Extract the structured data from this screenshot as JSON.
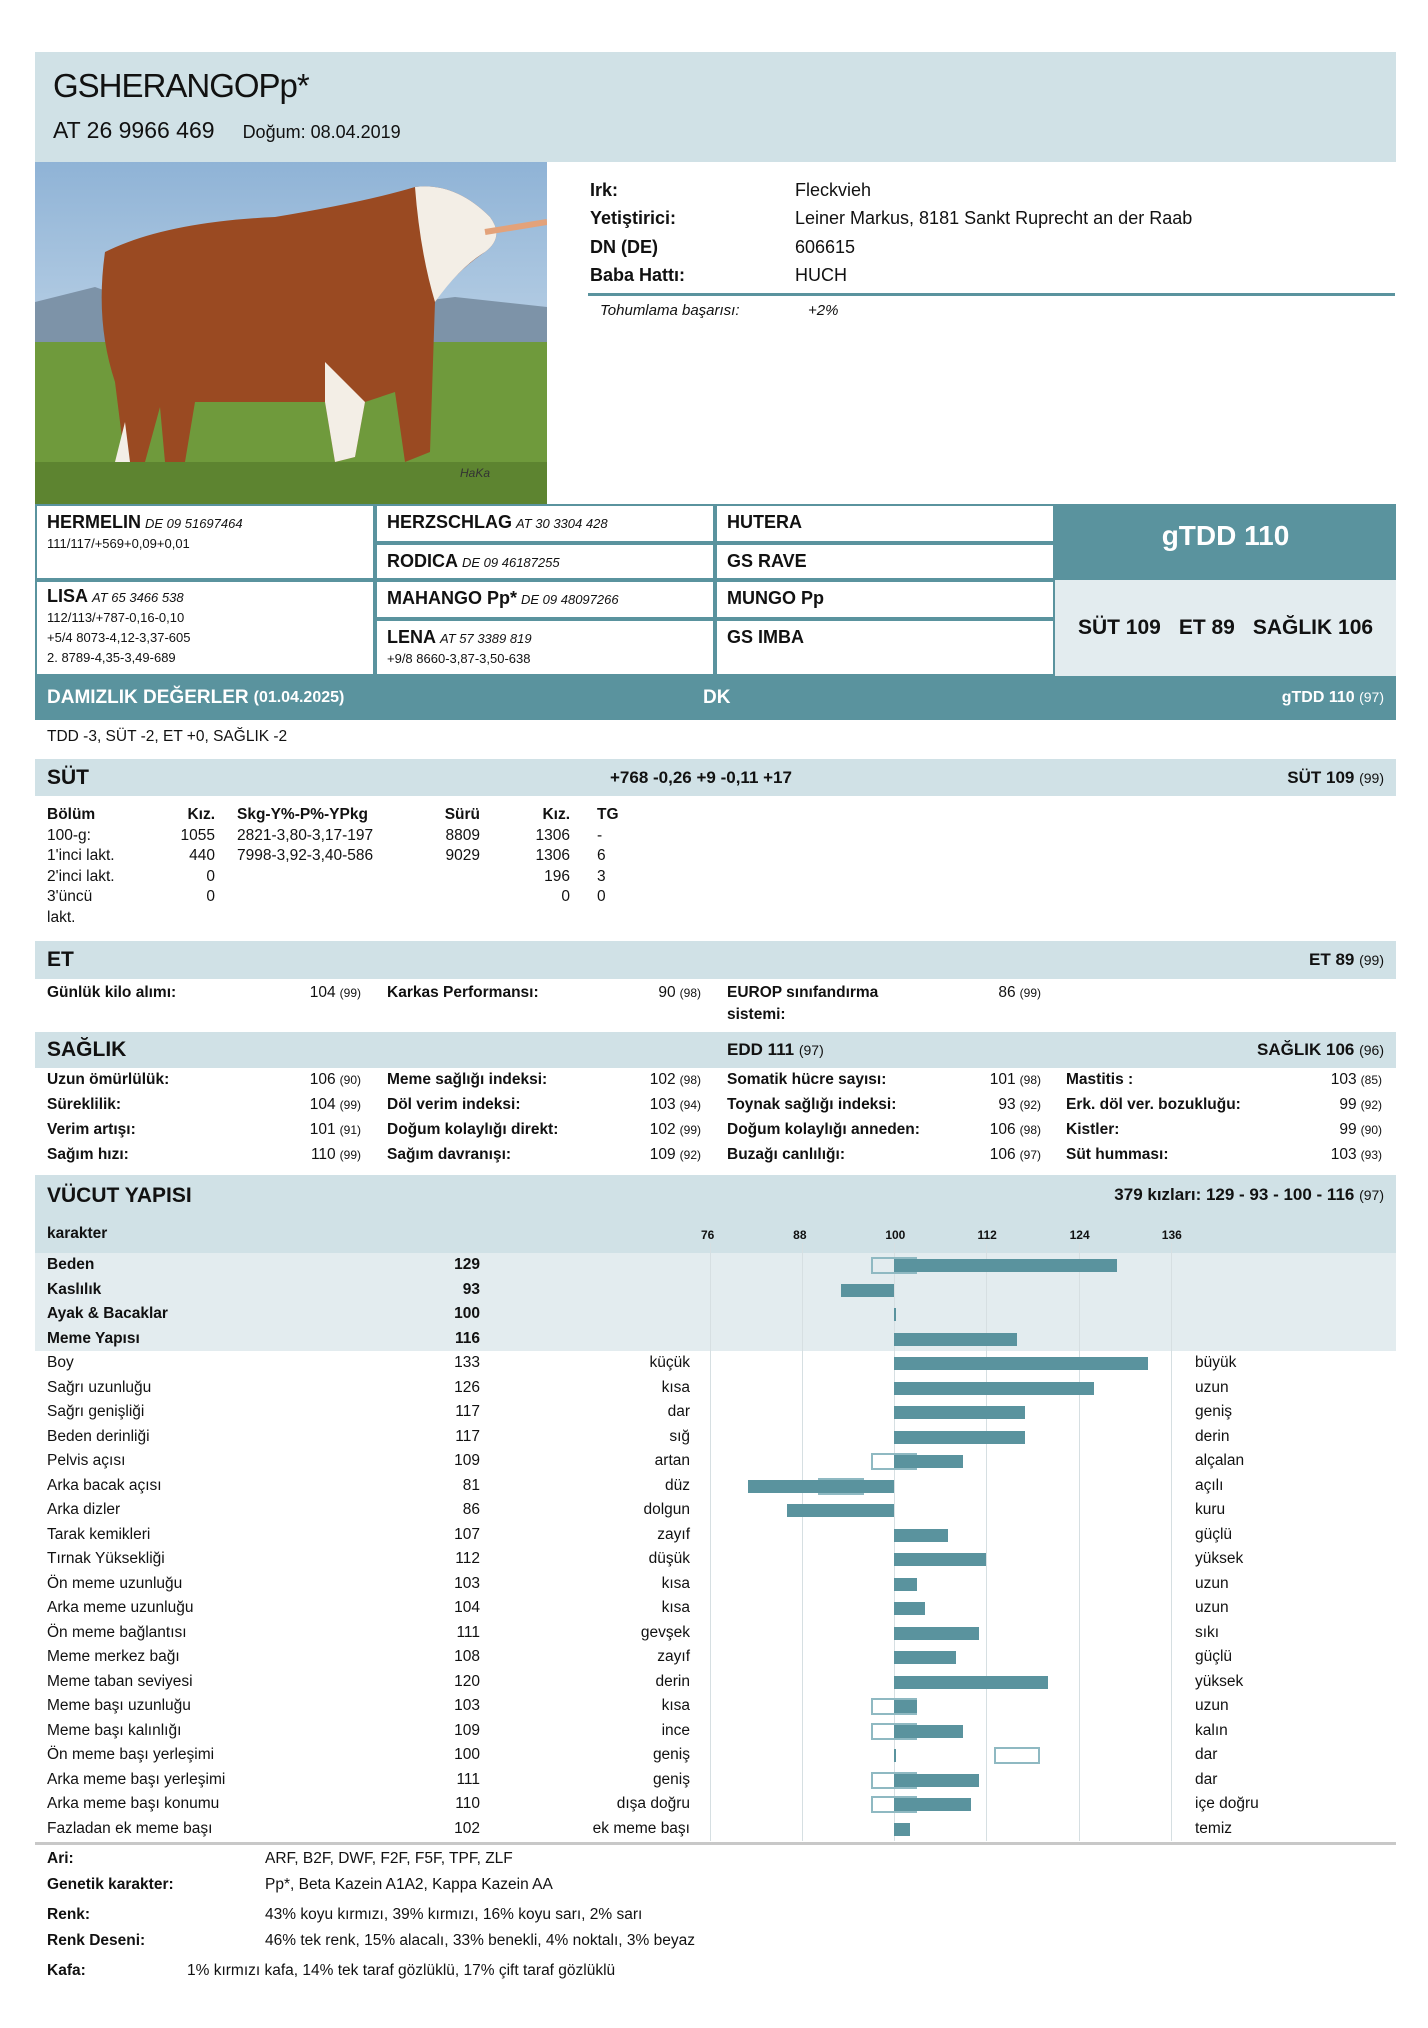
{
  "header": {
    "title": "GSHERANGOPp*",
    "id": "AT 26 9966 469",
    "birth": "Doğum: 08.04.2019"
  },
  "photo": {
    "watermark": "HaKa"
  },
  "info": [
    {
      "k": "Irk:",
      "v": "Fleckvieh"
    },
    {
      "k": "Yetiştirici:",
      "v": "Leiner Markus, 8181 Sankt Ruprecht an der Raab"
    },
    {
      "k": "DN (DE)",
      "v": "606615"
    },
    {
      "k": "Baba Hattı:",
      "v": "HUCH"
    }
  ],
  "tohumlama": {
    "k": "Tohumlama başarısı:",
    "v": "+2%"
  },
  "pedigree": {
    "sire": {
      "name": "HERMELIN",
      "id": "DE 09 51697464",
      "line1": "111/117/+569+0,09+0,01"
    },
    "ss": {
      "name": "HERZSCHLAG",
      "id": "AT 30 3304 428"
    },
    "sd": {
      "name": "RODICA",
      "id": "DE 09 46187255"
    },
    "sss": {
      "name": "HUTERA"
    },
    "sds": {
      "name": "GS RAVE"
    },
    "dam": {
      "name": "LISA",
      "id": "AT 65 3466 538",
      "line1": "112/113/+787-0,16-0,10",
      "line2": "+5/4 8073-4,12-3,37-605",
      "line3": "2. 8789-4,35-3,49-689"
    },
    "ds": {
      "name": "MAHANGO Pp*",
      "id": "DE 09 48097266"
    },
    "dd": {
      "name": "LENA",
      "id": "AT 57 3389 819",
      "line1": "+9/8 8660-3,87-3,50-638"
    },
    "dss": {
      "name": "MUNGO Pp"
    },
    "dds": {
      "name": "GS IMBA"
    }
  },
  "summary": {
    "gtdd": "gTDD 110",
    "sut": "SÜT 109",
    "et": "ET 89",
    "saglik": "SAĞLIK 106"
  },
  "damizlik": {
    "title": "DAMIZLIK DEĞERLER",
    "date": "(01.04.2025)",
    "center": "DK",
    "right": "gTDD 110",
    "right_rel": "(97)"
  },
  "tdd_line": "TDD -3, SÜT -2, ET +0, SAĞLIK -2",
  "sut": {
    "title": "SÜT",
    "center": "+768 -0,26 +9 -0,11 +17",
    "right": "SÜT 109",
    "right_rel": "(99)",
    "headers": [
      "Bölüm",
      "Kız.",
      "Skg-Y%-P%-YPkg",
      "Sürü",
      "Kız.",
      "TG"
    ],
    "rows": [
      [
        "100-g:",
        "1055",
        "2821-3,80-3,17-197",
        "8809",
        "1306",
        "-"
      ],
      [
        "1'inci lakt.",
        "440",
        "7998-3,92-3,40-586",
        "9029",
        "1306",
        "6"
      ],
      [
        "2'inci lakt.",
        "0",
        "",
        "",
        "196",
        "3"
      ],
      [
        "3'üncü",
        "0",
        "",
        "",
        "0",
        "0"
      ],
      [
        "lakt.",
        "",
        "",
        "",
        "",
        ""
      ]
    ]
  },
  "et": {
    "title": "ET",
    "right": "ET 89",
    "right_rel": "(99)",
    "items": [
      {
        "k": "Günlük kilo alımı:",
        "v": "104",
        "r": "(99)"
      },
      {
        "k": "Karkas Performansı:",
        "v": "90",
        "r": "(98)"
      },
      {
        "k": "EUROP sınıfandırma",
        "k2": "sistemi:",
        "v": "86",
        "r": "(99)"
      }
    ]
  },
  "saglik": {
    "title": "SAĞLIK",
    "center": "EDD 111",
    "center_rel": "(97)",
    "right": "SAĞLIK 106",
    "right_rel": "(96)",
    "rows": [
      [
        {
          "k": "Uzun ömürlülük:",
          "v": "106",
          "r": "(90)"
        },
        {
          "k": "Meme sağlığı indeksi:",
          "v": "102",
          "r": "(98)"
        },
        {
          "k": "Somatik hücre sayısı:",
          "v": "101",
          "r": "(98)"
        },
        {
          "k": "Mastitis :",
          "v": "103",
          "r": "(85)"
        }
      ],
      [
        {
          "k": "Süreklilik:",
          "v": "104",
          "r": "(99)"
        },
        {
          "k": "Döl verim indeksi:",
          "v": "103",
          "r": "(94)"
        },
        {
          "k": "Toynak sağlığı indeksi:",
          "v": "93",
          "r": "(92)"
        },
        {
          "k": "Erk. döl ver. bozukluğu:",
          "v": "99",
          "r": "(92)"
        }
      ],
      [
        {
          "k": "Verim artışı:",
          "v": "101",
          "r": "(91)"
        },
        {
          "k": "Doğum kolaylığı direkt:",
          "v": "102",
          "r": "(99)"
        },
        {
          "k": "Doğum kolaylığı anneden:",
          "v": "106",
          "r": "(98)"
        },
        {
          "k": "Kistler:",
          "v": "99",
          "r": "(90)"
        }
      ],
      [
        {
          "k": "Sağım hızı:",
          "v": "110",
          "r": "(99)"
        },
        {
          "k": "Sağım davranışı:",
          "v": "109",
          "r": "(92)"
        },
        {
          "k": "Buzağı canlılığı:",
          "v": "106",
          "r": "(97)"
        },
        {
          "k": "Süt humması:",
          "v": "103",
          "r": "(93)"
        }
      ]
    ]
  },
  "vucut": {
    "title": "VÜCUT YAPISI",
    "right": "379 kızları: 129 - 93 - 100 - 116",
    "right_rel": "(97)",
    "col_label": "karakter",
    "ticks": [
      "76",
      "88",
      "100",
      "112",
      "124",
      "136"
    ],
    "composite": [
      {
        "name": "Beden",
        "value": 129,
        "opt": [
          97,
          103
        ]
      },
      {
        "name": "Kaslılık",
        "value": 93
      },
      {
        "name": "Ayak & Bacaklar",
        "value": 100
      },
      {
        "name": "Meme Yapısı",
        "value": 116
      }
    ],
    "linear": [
      {
        "name": "Boy",
        "value": 133,
        "low": "küçük",
        "high": "büyük"
      },
      {
        "name": "Sağrı uzunluğu",
        "value": 126,
        "low": "kısa",
        "high": "uzun"
      },
      {
        "name": "Sağrı genişliği",
        "value": 117,
        "low": "dar",
        "high": "geniş"
      },
      {
        "name": "Beden derinliği",
        "value": 117,
        "low": "sığ",
        "high": "derin"
      },
      {
        "name": "Pelvis açısı",
        "value": 109,
        "low": "artan",
        "high": "alçalan",
        "opt": [
          97,
          103
        ]
      },
      {
        "name": "Arka bacak açısı",
        "value": 81,
        "low": "düz",
        "high": "açılı",
        "opt": [
          90,
          96
        ]
      },
      {
        "name": "Arka dizler",
        "value": 86,
        "low": "dolgun",
        "high": "kuru"
      },
      {
        "name": "Tarak kemikleri",
        "value": 107,
        "low": "zayıf",
        "high": "güçlü"
      },
      {
        "name": "Tırnak Yüksekliği",
        "value": 112,
        "low": "düşük",
        "high": "yüksek"
      },
      {
        "name": "Ön meme uzunluğu",
        "value": 103,
        "low": "kısa",
        "high": "uzun"
      },
      {
        "name": "Arka meme uzunluğu",
        "value": 104,
        "low": "kısa",
        "high": "uzun"
      },
      {
        "name": "Ön meme bağlantısı",
        "value": 111,
        "low": "gevşek",
        "high": "sıkı"
      },
      {
        "name": "Meme merkez bağı",
        "value": 108,
        "low": "zayıf",
        "high": "güçlü"
      },
      {
        "name": "Meme taban seviyesi",
        "value": 120,
        "low": "derin",
        "high": "yüksek"
      },
      {
        "name": "Meme başı uzunluğu",
        "value": 103,
        "low": "kısa",
        "high": "uzun",
        "opt": [
          97,
          103
        ]
      },
      {
        "name": "Meme başı kalınlığı",
        "value": 109,
        "low": "ince",
        "high": "kalın",
        "opt": [
          97,
          103
        ]
      },
      {
        "name": "Ön meme başı yerleşimi",
        "value": 100,
        "low": "geniş",
        "high": "dar",
        "opt": [
          113,
          119
        ]
      },
      {
        "name": "Arka meme başı yerleşimi",
        "value": 111,
        "low": "geniş",
        "high": "dar",
        "opt": [
          97,
          103
        ]
      },
      {
        "name": "Arka meme başı konumu",
        "value": 110,
        "low": "dışa doğru",
        "high": "içe doğru",
        "opt": [
          97,
          103
        ]
      },
      {
        "name": "Fazladan ek meme başı",
        "value": 102,
        "low": "ek meme başı",
        "high": "temiz"
      }
    ]
  },
  "footer": [
    {
      "k": "Ari:",
      "v": "ARF, B2F, DWF, F2F, F5F, TPF, ZLF"
    },
    {
      "k": "Genetik karakter:",
      "v": "Pp*, Beta Kazein A1A2, Kappa Kazein AA"
    },
    {
      "k": "Renk:",
      "v": "43% koyu kırmızı, 39% kırmızı, 16% koyu sarı, 2% sarı"
    },
    {
      "k": "Renk Deseni:",
      "v": "46% tek renk, 15% alacalı, 33% benekli, 4% noktalı, 3% beyaz"
    },
    {
      "k": "Kafa:",
      "v": "1% kırmızı  kafa, 14% tek taraf gözlüklü, 17% çift taraf gözlüklü"
    }
  ],
  "colors": {
    "accent": "#5a939e",
    "band": "#d0e1e6",
    "composite_bg": "#e3ecef"
  }
}
